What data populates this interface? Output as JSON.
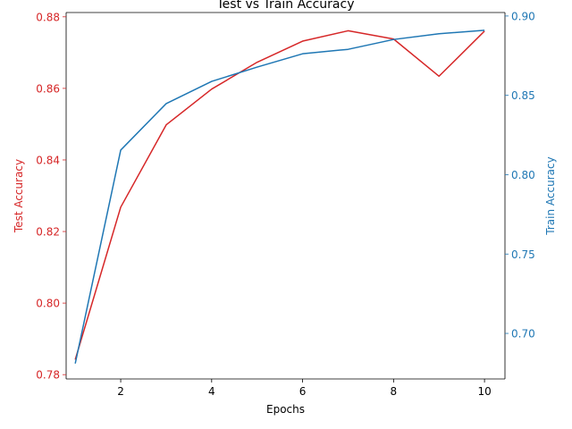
{
  "chart_data": {
    "type": "line",
    "title": "Test vs Train Accuracy",
    "xlabel": "Epochs",
    "x": [
      1,
      2,
      3,
      4,
      5,
      6,
      7,
      8,
      9,
      10
    ],
    "xlim": [
      0.8,
      10.45
    ],
    "xticks": [
      "2",
      "4",
      "6",
      "8",
      "10"
    ],
    "grid": false,
    "colors": {
      "left_axis": "#d62728",
      "right_axis": "#1f77b4"
    },
    "y_left": {
      "label": "Test Accuracy",
      "ylim": [
        0.7788,
        0.8812
      ],
      "ticks": [
        "0.78",
        "0.80",
        "0.82",
        "0.84",
        "0.86",
        "0.88"
      ],
      "values": [
        0.7842,
        0.8268,
        0.8498,
        0.8598,
        0.8673,
        0.8732,
        0.8761,
        0.8738,
        0.8634,
        0.876
      ]
    },
    "y_right": {
      "label": "Train Accuracy",
      "ylim": [
        0.6713,
        0.9022
      ],
      "ticks": [
        "0.70",
        "0.75",
        "0.80",
        "0.85",
        "0.90"
      ],
      "values": [
        0.681,
        0.8155,
        0.8448,
        0.8588,
        0.8678,
        0.8762,
        0.879,
        0.8852,
        0.8888,
        0.891
      ]
    }
  }
}
